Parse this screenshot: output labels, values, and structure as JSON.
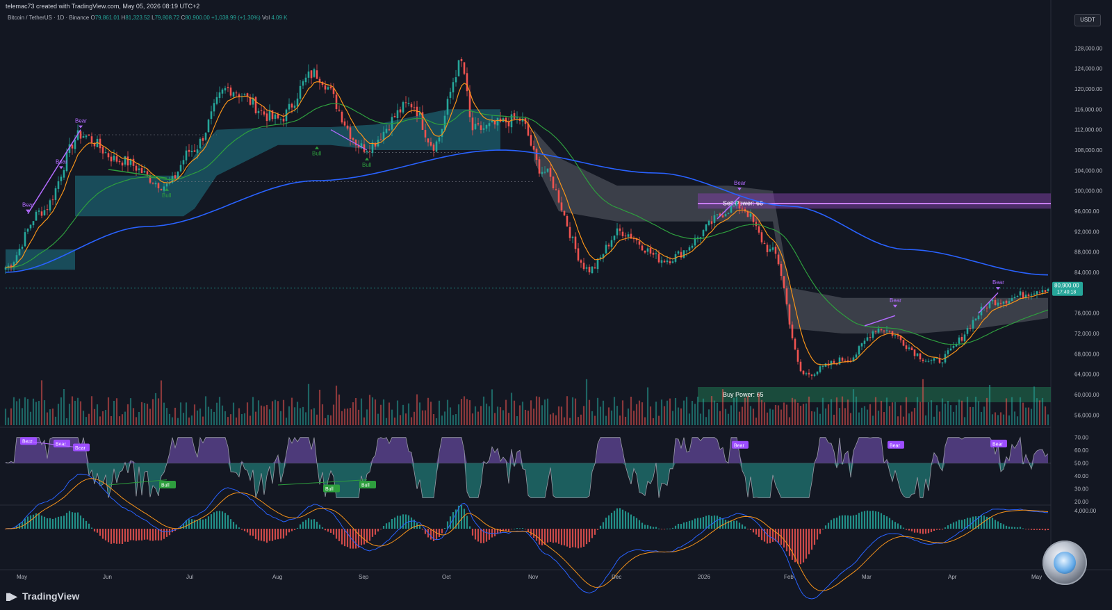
{
  "header": {
    "creator": "telemac73 created with TradingView.com, May 05, 2026 08:19 UTC+2"
  },
  "legend": {
    "symbol": "Bitcoin / TetherUS · 1D · Binance",
    "open": "79,861.01",
    "high": "81,323.52",
    "low": "79,808.72",
    "close": "80,900.00",
    "change": "+1,038.99 (+1.30%)",
    "volume": "4.09 K"
  },
  "price_axis": {
    "currency": "USDT",
    "ticks": [
      "128,000.00",
      "124,000.00",
      "120,000.00",
      "116,000.00",
      "112,000.00",
      "108,000.00",
      "104,000.00",
      "100,000.00",
      "96,000.00",
      "92,000.00",
      "88,000.00",
      "84,000.00",
      "76,000.00",
      "72,000.00",
      "68,000.00",
      "64,000.00",
      "60,000.00",
      "56,000.00"
    ],
    "last_price": "80,900.00",
    "countdown": "17:40:18"
  },
  "rsi_axis": {
    "ticks": [
      "70.00",
      "60.00",
      "50.00",
      "40.00",
      "30.00",
      "20.00"
    ]
  },
  "macd_axis": {
    "ticks": [
      "4,000.00"
    ]
  },
  "time_axis": {
    "ticks": [
      "May",
      "Jun",
      "Jul",
      "Aug",
      "Sep",
      "Oct",
      "Nov",
      "Dec",
      "2026",
      "Feb",
      "Mar",
      "Apr",
      "May"
    ]
  },
  "zones": {
    "sell_label": "Sell Power: 65",
    "buy_label": "Buy Power: 65"
  },
  "signal_labels": {
    "bear": "Bear",
    "bull": "Bull"
  },
  "brand": {
    "logo_text": "TradingView"
  },
  "colors": {
    "background": "#131722",
    "bull": "#26a69a",
    "bear": "#ef5350",
    "ema_fast": "#f7931a",
    "ma_mid": "#2e9e3e",
    "ma_long": "#2962ff",
    "cloud_teal": "#1c5f6d",
    "cloud_gray": "#4a4d57",
    "sell_zone": "#7b3fa0",
    "buy_zone": "#1e5e46",
    "divergence": "#b36bff"
  },
  "chart_data": {
    "type": "candlestick",
    "symbol": "BTCUSDT",
    "interval": "1D",
    "ylim": [
      54000,
      132000
    ],
    "price_path": [
      {
        "date": "2025-04-25",
        "close": 85000
      },
      {
        "date": "2025-05-08",
        "close": 96000
      },
      {
        "date": "2025-05-22",
        "close": 111000
      },
      {
        "date": "2025-06-05",
        "close": 106000
      },
      {
        "date": "2025-06-22",
        "close": 101000
      },
      {
        "date": "2025-07-01",
        "close": 108000
      },
      {
        "date": "2025-07-14",
        "close": 120000
      },
      {
        "date": "2025-08-01",
        "close": 114000
      },
      {
        "date": "2025-08-14",
        "close": 123000
      },
      {
        "date": "2025-09-01",
        "close": 108500
      },
      {
        "date": "2025-09-18",
        "close": 117000
      },
      {
        "date": "2025-09-26",
        "close": 109000
      },
      {
        "date": "2025-10-06",
        "close": 125000
      },
      {
        "date": "2025-10-10",
        "close": 112000
      },
      {
        "date": "2025-10-27",
        "close": 114000
      },
      {
        "date": "2025-11-04",
        "close": 104000
      },
      {
        "date": "2025-11-21",
        "close": 84500
      },
      {
        "date": "2025-12-02",
        "close": 92000
      },
      {
        "date": "2025-12-18",
        "close": 86500
      },
      {
        "date": "2026-01-14",
        "close": 97000
      },
      {
        "date": "2026-01-26",
        "close": 88000
      },
      {
        "date": "2026-02-06",
        "close": 64000
      },
      {
        "date": "2026-02-22",
        "close": 67000
      },
      {
        "date": "2026-03-05",
        "close": 73000
      },
      {
        "date": "2026-03-25",
        "close": 66500
      },
      {
        "date": "2026-04-17",
        "close": 78500
      },
      {
        "date": "2026-05-05",
        "close": 80900
      }
    ],
    "ma_long_path": [
      {
        "date": "2025-04-25",
        "value": 84000
      },
      {
        "date": "2025-06-15",
        "value": 93000
      },
      {
        "date": "2025-08-15",
        "value": 102000
      },
      {
        "date": "2025-10-20",
        "value": 108000
      },
      {
        "date": "2025-12-15",
        "value": 103500
      },
      {
        "date": "2026-02-01",
        "value": 97000
      },
      {
        "date": "2026-03-15",
        "value": 88500
      },
      {
        "date": "2026-05-05",
        "value": 83500
      }
    ],
    "sell_zone": [
      96500,
      99500
    ],
    "buy_zone": [
      58500,
      61500
    ],
    "rsi_ylim": [
      20,
      72
    ],
    "rsi_midline": 50,
    "macd_note": "MACD histogram with signal lines"
  }
}
